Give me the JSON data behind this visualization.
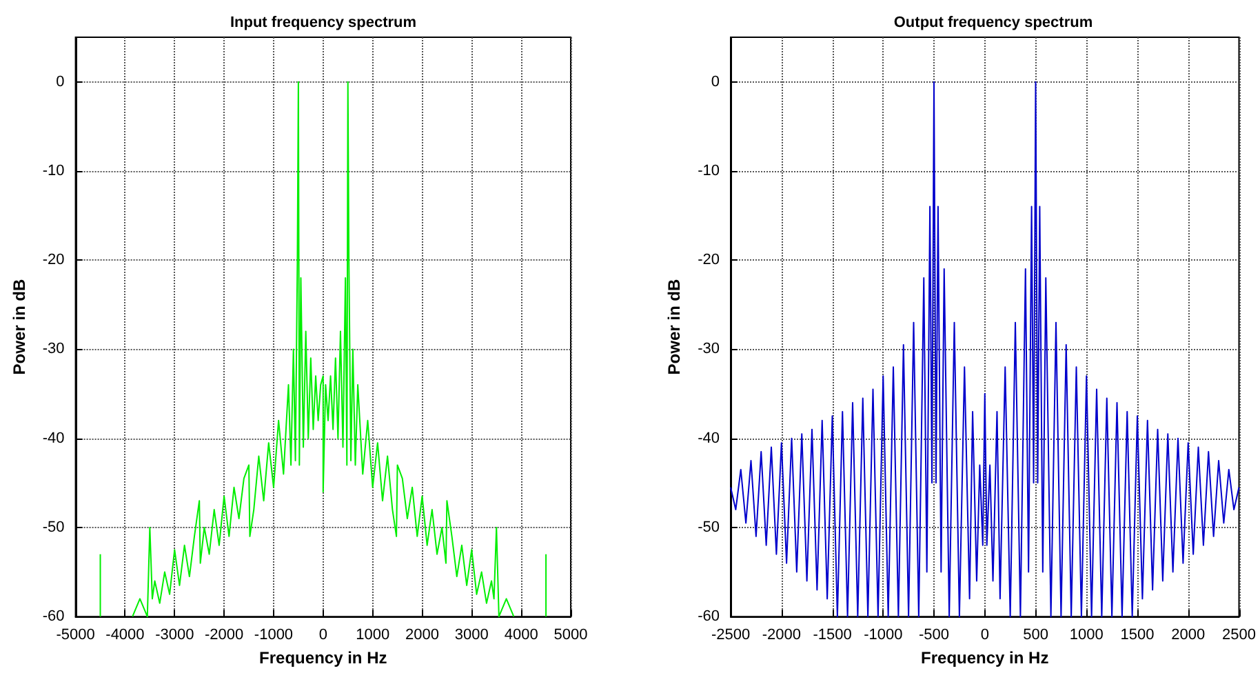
{
  "chart_data": [
    {
      "type": "line",
      "title": "Input frequency spectrum",
      "xlabel": "Frequency in Hz",
      "ylabel": "Power in dB",
      "xlim": [
        -5000,
        5000
      ],
      "xticks": [
        -5000,
        -4000,
        -3000,
        -2000,
        -1000,
        0,
        1000,
        2000,
        3000,
        4000,
        5000
      ],
      "ylim": [
        -60,
        5
      ],
      "yticks": [
        -60,
        -50,
        -40,
        -30,
        -20,
        -10,
        0
      ],
      "grid": true,
      "marker": "none",
      "line_style": "solid",
      "series": [
        {
          "color": "#00ee00",
          "x": [
            -4500,
            -4500,
            -4480,
            -3850,
            -3700,
            -3550,
            -3500,
            -3450,
            -3400,
            -3300,
            -3200,
            -3100,
            -3000,
            -2900,
            -2800,
            -2700,
            -2600,
            -2500,
            -2480,
            -2400,
            -2300,
            -2200,
            -2100,
            -2000,
            -1900,
            -1800,
            -1700,
            -1600,
            -1500,
            -1480,
            -1400,
            -1300,
            -1200,
            -1100,
            -1000,
            -900,
            -800,
            -700,
            -650,
            -600,
            -560,
            -520,
            -500,
            -480,
            -450,
            -400,
            -350,
            -300,
            -250,
            -200,
            -150,
            -100,
            -50,
            0,
            0,
            50,
            100,
            150,
            200,
            250,
            300,
            350,
            400,
            450,
            480,
            500,
            520,
            560,
            600,
            650,
            700,
            800,
            900,
            1000,
            1100,
            1200,
            1300,
            1400,
            1480,
            1500,
            1600,
            1700,
            1800,
            1900,
            2000,
            2100,
            2200,
            2300,
            2400,
            2480,
            2500,
            2600,
            2700,
            2800,
            2900,
            3000,
            3100,
            3200,
            3300,
            3400,
            3450,
            3500,
            3550,
            3700,
            3850,
            4480,
            4500,
            4500
          ],
          "values": [
            -60,
            -53,
            null,
            -60,
            -58,
            -60,
            -50,
            -58,
            -56,
            -58.5,
            -55,
            -57.5,
            -52.5,
            -56.5,
            -52,
            -55.5,
            -51,
            -47,
            -54,
            -50,
            -53,
            -48,
            -52,
            -46.5,
            -51,
            -45.5,
            -49,
            -44.5,
            -43,
            -51,
            -48,
            -42,
            -47,
            -40.5,
            -45.5,
            -38,
            -44,
            -34,
            -43,
            -30,
            -42.5,
            -20,
            0,
            -43,
            -22,
            -41,
            -28,
            -40,
            -31,
            -39,
            -33,
            -38,
            -34,
            -33,
            -46,
            -34,
            -38,
            -33,
            -39,
            -31,
            -40,
            -28,
            -41,
            -22,
            -43,
            0,
            -20,
            -42.5,
            -30,
            -43,
            -34,
            -44,
            -38,
            -45.5,
            -40.5,
            -47,
            -42,
            -48,
            -51,
            -43,
            -44.5,
            -49,
            -45.5,
            -51,
            -46.5,
            -52,
            -48,
            -53,
            -50,
            -54,
            -47,
            -51,
            -55.5,
            -52,
            -56.5,
            -52.5,
            -57.5,
            -55,
            -58.5,
            -56,
            -58,
            -50,
            -60,
            -58,
            -60,
            null,
            -53,
            -60
          ]
        }
      ]
    },
    {
      "type": "line",
      "title": "Output frequency spectrum",
      "xlabel": "Frequency in Hz",
      "ylabel": "Power in dB",
      "xlim": [
        -2500,
        2500
      ],
      "xticks": [
        -2500,
        -2000,
        -1500,
        -1000,
        -500,
        0,
        500,
        1000,
        1500,
        2000,
        2500
      ],
      "ylim": [
        -60,
        5
      ],
      "yticks": [
        -60,
        -50,
        -40,
        -30,
        -20,
        -10,
        0
      ],
      "grid": true,
      "marker": "none",
      "line_style": "solid",
      "series": [
        {
          "color": "#0000cc",
          "x": [
            -2500,
            -2450,
            -2400,
            -2350,
            -2300,
            -2250,
            -2200,
            -2150,
            -2100,
            -2050,
            -2000,
            -1950,
            -1900,
            -1850,
            -1800,
            -1750,
            -1700,
            -1650,
            -1600,
            -1550,
            -1500,
            -1450,
            -1400,
            -1350,
            -1300,
            -1250,
            -1200,
            -1150,
            -1100,
            -1050,
            -1000,
            -950,
            -900,
            -850,
            -800,
            -750,
            -700,
            -650,
            -600,
            -570,
            -540,
            -520,
            -500,
            -480,
            -460,
            -430,
            -400,
            -350,
            -300,
            -250,
            -200,
            -150,
            -120,
            -80,
            -50,
            -20,
            0,
            20,
            50,
            80,
            120,
            150,
            200,
            250,
            300,
            350,
            400,
            430,
            460,
            480,
            500,
            520,
            540,
            570,
            600,
            650,
            700,
            750,
            800,
            850,
            900,
            950,
            1000,
            1050,
            1100,
            1150,
            1200,
            1250,
            1300,
            1350,
            1400,
            1450,
            1500,
            1550,
            1600,
            1650,
            1700,
            1750,
            1800,
            1850,
            1900,
            1950,
            2000,
            2050,
            2100,
            2150,
            2200,
            2250,
            2300,
            2350,
            2400,
            2450,
            2500
          ],
          "values": [
            -45.5,
            -48,
            -43.5,
            -49.5,
            -42.5,
            -51,
            -41.5,
            -52,
            -41,
            -53,
            -40.5,
            -54,
            -40,
            -55,
            -39.5,
            -56,
            -39,
            -57,
            -38,
            -58,
            -37.5,
            -60,
            -37,
            -60,
            -36,
            -60,
            -35.5,
            -60,
            -34.5,
            -60,
            -33,
            -60,
            -32,
            -60,
            -29.5,
            -60,
            -27,
            -60,
            -22,
            -55,
            -14,
            -45,
            0,
            -45,
            -14,
            -55,
            -21,
            -60,
            -27,
            -60,
            -32,
            -58,
            -37,
            -56,
            -43,
            -52,
            -35,
            -52,
            -43,
            -56,
            -37,
            -58,
            -32,
            -60,
            -27,
            -60,
            -21,
            -55,
            -14,
            -45,
            0,
            -45,
            -14,
            -55,
            -22,
            -60,
            -27,
            -60,
            -29.5,
            -60,
            -32,
            -60,
            -33,
            -60,
            -34.5,
            -60,
            -35.5,
            -60,
            -36,
            -60,
            -37,
            -60,
            -37.5,
            -58,
            -38,
            -57,
            -39,
            -56,
            -39.5,
            -55,
            -40,
            -54,
            -40.5,
            -53,
            -41,
            -52,
            -41.5,
            -51,
            -42.5,
            -49.5,
            -43.5,
            -48,
            -45.5
          ]
        }
      ]
    }
  ]
}
